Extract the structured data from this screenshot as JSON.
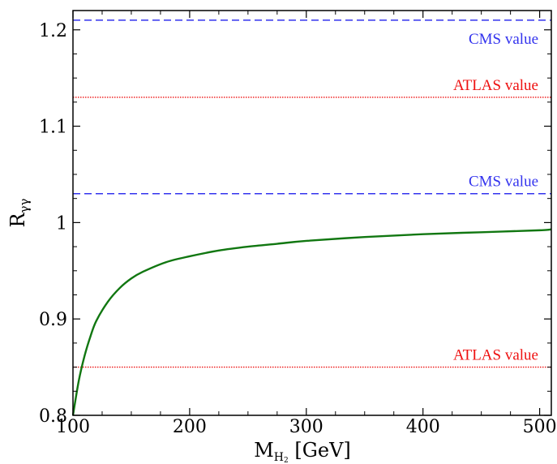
{
  "chart_data": {
    "type": "line",
    "xlabel": {
      "main": "M",
      "sub": "H",
      "subsub": "2",
      "unit": " [GeV]"
    },
    "ylabel": {
      "main": "R",
      "sub": "γγ"
    },
    "xlim": [
      100,
      510
    ],
    "ylim": [
      0.8,
      1.22
    ],
    "x_ticks": [
      100,
      200,
      300,
      400,
      500
    ],
    "x_tick_labels": [
      "100",
      "200",
      "300",
      "400",
      "500"
    ],
    "y_ticks": [
      0.8,
      0.9,
      1.0,
      1.1,
      1.2
    ],
    "y_tick_labels": [
      "0.8",
      "0.9",
      "1",
      "1.1",
      "1.2"
    ],
    "grid": false,
    "reference_lines": [
      {
        "y": 1.21,
        "label": "CMS value",
        "color": "#3333ee",
        "style": "dashed"
      },
      {
        "y": 1.13,
        "label": "ATLAS value",
        "color": "#ee1111",
        "style": "dotted"
      },
      {
        "y": 1.03,
        "label": "CMS value",
        "color": "#3333ee",
        "style": "dashed"
      },
      {
        "y": 0.85,
        "label": "ATLAS value",
        "color": "#ee1111",
        "style": "dotted"
      }
    ],
    "series": [
      {
        "color": "#117711",
        "x": [
          100,
          105,
          110,
          115,
          120,
          130,
          140,
          150,
          160,
          180,
          200,
          225,
          250,
          275,
          300,
          350,
          400,
          450,
          500,
          510
        ],
        "y": [
          0.8,
          0.836,
          0.862,
          0.882,
          0.898,
          0.918,
          0.932,
          0.942,
          0.949,
          0.959,
          0.965,
          0.971,
          0.975,
          0.978,
          0.981,
          0.985,
          0.988,
          0.99,
          0.992,
          0.993
        ]
      }
    ]
  }
}
